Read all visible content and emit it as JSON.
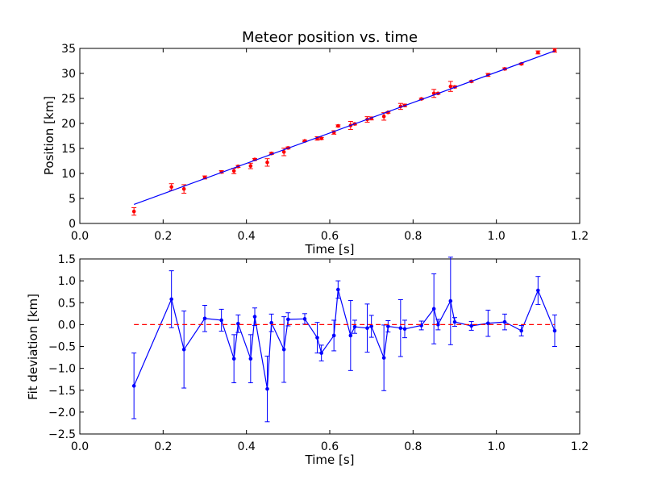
{
  "chart_data": [
    {
      "type": "scatter",
      "title": "Meteor position vs. time",
      "xlabel": "Time [s]",
      "ylabel": "Position [km]",
      "xlim": [
        0.0,
        1.2
      ],
      "ylim": [
        0,
        35
      ],
      "xticks": [
        "0.0",
        "0.2",
        "0.4",
        "0.6",
        "0.8",
        "1.0",
        "1.2"
      ],
      "yticks": [
        "0",
        "5",
        "10",
        "15",
        "20",
        "25",
        "30",
        "35"
      ],
      "grid": false,
      "colors": {
        "points": "#ff0000",
        "fit": "#0000ff"
      },
      "series": [
        {
          "style": "points-with-errorbars",
          "x": [
            0.13,
            0.22,
            0.25,
            0.3,
            0.34,
            0.37,
            0.38,
            0.41,
            0.42,
            0.45,
            0.46,
            0.49,
            0.5,
            0.54,
            0.57,
            0.58,
            0.61,
            0.62,
            0.65,
            0.66,
            0.69,
            0.7,
            0.73,
            0.74,
            0.77,
            0.78,
            0.82,
            0.85,
            0.86,
            0.89,
            0.9,
            0.94,
            0.98,
            1.02,
            1.06,
            1.1,
            1.14
          ],
          "y": [
            2.4,
            7.3,
            6.9,
            9.2,
            10.3,
            10.5,
            11.4,
            11.5,
            12.8,
            12.2,
            14.0,
            14.3,
            15.1,
            16.5,
            17.0,
            17.0,
            18.2,
            19.5,
            19.6,
            19.9,
            20.8,
            21.0,
            21.4,
            22.2,
            23.4,
            23.6,
            24.9,
            26.0,
            26.0,
            27.4,
            27.3,
            28.4,
            29.7,
            30.9,
            31.9,
            34.2,
            34.6
          ],
          "yerr": [
            0.75,
            0.65,
            0.85,
            0.3,
            0.25,
            0.55,
            0.2,
            0.55,
            0.2,
            0.75,
            0.2,
            0.75,
            0.2,
            0.15,
            0.35,
            0.2,
            0.35,
            0.2,
            0.8,
            0.2,
            0.55,
            0.3,
            0.75,
            0.15,
            0.6,
            0.25,
            0.15,
            0.8,
            0.15,
            1.0,
            0.2,
            0.15,
            0.3,
            0.2,
            0.15,
            0.3,
            0.35
          ]
        },
        {
          "style": "line",
          "x": [
            0.13,
            1.14
          ],
          "y": [
            3.8,
            34.5
          ]
        }
      ]
    },
    {
      "type": "line",
      "xlabel": "Time [s]",
      "ylabel": "Fit deviation [km]",
      "xlim": [
        0.0,
        1.2
      ],
      "ylim": [
        -2.5,
        1.5
      ],
      "xticks": [
        "0.0",
        "0.2",
        "0.4",
        "0.6",
        "0.8",
        "1.0",
        "1.2"
      ],
      "yticks": [
        "−2.5",
        "−2.0",
        "−1.5",
        "−1.0",
        "−0.5",
        "0.0",
        "0.5",
        "1.0",
        "1.5"
      ],
      "grid": false,
      "colors": {
        "deviation": "#0000ff",
        "zero_line": "#ff0000"
      },
      "series": [
        {
          "style": "line-with-errorbars",
          "x": [
            0.13,
            0.22,
            0.25,
            0.3,
            0.34,
            0.37,
            0.38,
            0.41,
            0.42,
            0.45,
            0.46,
            0.49,
            0.5,
            0.54,
            0.57,
            0.58,
            0.61,
            0.62,
            0.65,
            0.66,
            0.69,
            0.7,
            0.73,
            0.74,
            0.77,
            0.78,
            0.82,
            0.85,
            0.86,
            0.89,
            0.9,
            0.94,
            0.98,
            1.02,
            1.06,
            1.1,
            1.14
          ],
          "y": [
            -1.4,
            0.58,
            -0.57,
            0.14,
            0.1,
            -0.78,
            0.02,
            -0.78,
            0.18,
            -1.47,
            0.04,
            -0.57,
            0.12,
            0.13,
            -0.3,
            -0.65,
            -0.25,
            0.8,
            -0.25,
            -0.05,
            -0.08,
            -0.04,
            -0.76,
            -0.04,
            -0.08,
            -0.1,
            -0.02,
            0.36,
            0.0,
            0.54,
            0.06,
            -0.03,
            0.03,
            0.06,
            -0.14,
            0.78,
            -0.14
          ],
          "yerr": [
            0.75,
            0.65,
            0.88,
            0.3,
            0.25,
            0.55,
            0.2,
            0.55,
            0.2,
            0.75,
            0.2,
            0.75,
            0.15,
            0.12,
            0.35,
            0.18,
            0.35,
            0.2,
            0.8,
            0.15,
            0.55,
            0.25,
            0.75,
            0.13,
            0.65,
            0.2,
            0.1,
            0.8,
            0.12,
            1.0,
            0.1,
            0.1,
            0.3,
            0.18,
            0.12,
            0.32,
            0.36
          ]
        },
        {
          "style": "dashed-line",
          "x": [
            0.13,
            1.14
          ],
          "y": [
            0.0,
            0.0
          ]
        }
      ]
    }
  ]
}
